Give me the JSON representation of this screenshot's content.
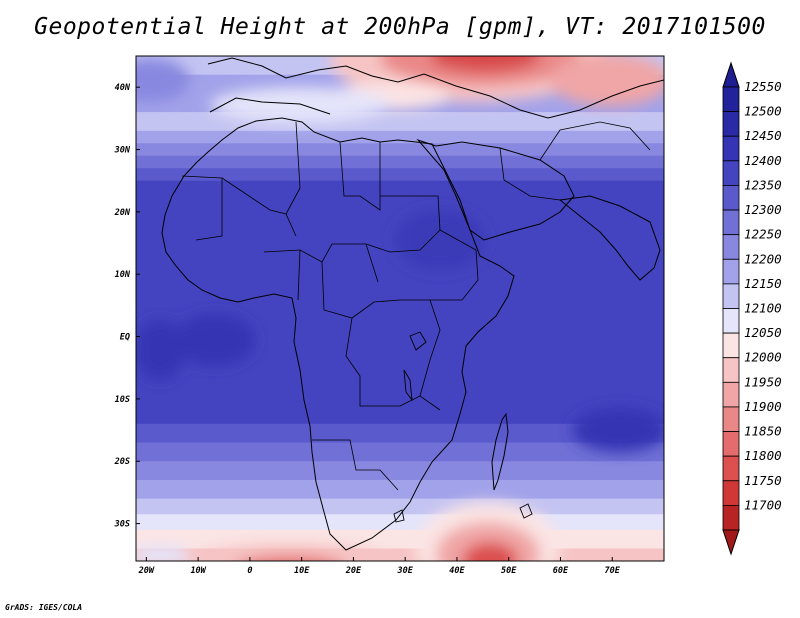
{
  "title": "Geopotential Height at 200hPa [gpm], VT: 2017101500",
  "credit": "GrADS: IGES/COLA",
  "map": {
    "lon_range": [
      -22,
      80
    ],
    "lat_range": [
      -36,
      45
    ],
    "x_ticks": [
      {
        "value": -20,
        "label": "20W"
      },
      {
        "value": -10,
        "label": "10W"
      },
      {
        "value": 0,
        "label": "0"
      },
      {
        "value": 10,
        "label": "10E"
      },
      {
        "value": 20,
        "label": "20E"
      },
      {
        "value": 30,
        "label": "30E"
      },
      {
        "value": 40,
        "label": "40E"
      },
      {
        "value": 50,
        "label": "50E"
      },
      {
        "value": 60,
        "label": "60E"
      },
      {
        "value": 70,
        "label": "70E"
      }
    ],
    "y_ticks": [
      {
        "value": 40,
        "label": "40N"
      },
      {
        "value": 30,
        "label": "30N"
      },
      {
        "value": 20,
        "label": "20N"
      },
      {
        "value": 10,
        "label": "10N"
      },
      {
        "value": 0,
        "label": "EQ"
      },
      {
        "value": -10,
        "label": "10S"
      },
      {
        "value": -20,
        "label": "20S"
      },
      {
        "value": -30,
        "label": "30S"
      }
    ]
  },
  "colorbar": {
    "levels": [
      {
        "label": "12550",
        "color": "#22229a"
      },
      {
        "label": "12500",
        "color": "#2a2aa6"
      },
      {
        "label": "12450",
        "color": "#3434b4"
      },
      {
        "label": "12400",
        "color": "#4444c0"
      },
      {
        "label": "12350",
        "color": "#5a5acc"
      },
      {
        "label": "12300",
        "color": "#7070d6"
      },
      {
        "label": "12250",
        "color": "#8888e0"
      },
      {
        "label": "12200",
        "color": "#a2a2ea"
      },
      {
        "label": "12150",
        "color": "#c4c4f2"
      },
      {
        "label": "12100",
        "color": "#e4e4fa"
      },
      {
        "label": "12050",
        "color": "#fbe4e4"
      },
      {
        "label": "12000",
        "color": "#f6c4c4"
      },
      {
        "label": "11950",
        "color": "#f0a6a6"
      },
      {
        "label": "11900",
        "color": "#ea8888"
      },
      {
        "label": "11850",
        "color": "#e46c6c"
      },
      {
        "label": "11800",
        "color": "#dc5050"
      },
      {
        "label": "11750",
        "color": "#d03838"
      },
      {
        "label": "11700",
        "color": "#b82424"
      }
    ],
    "top_color": "#1e1e90",
    "bottom_color": "#a01818"
  }
}
